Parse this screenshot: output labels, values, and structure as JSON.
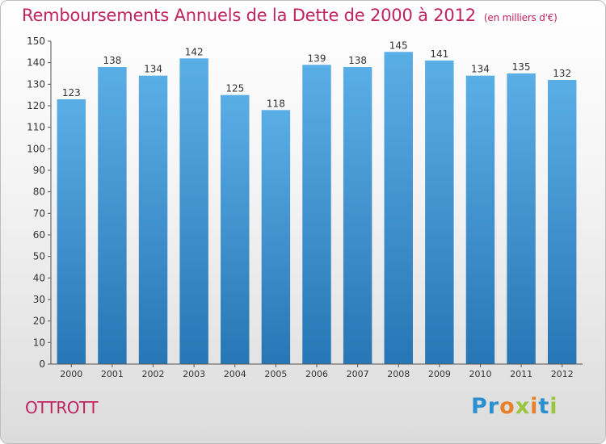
{
  "header": {
    "title": "Remboursements Annuels de la Dette de 2000 à 2012",
    "subtitle": "(en milliers d'€)"
  },
  "footer": {
    "commune": "OTTROTT",
    "logo": {
      "letters": [
        "P",
        "r",
        "o",
        "x",
        "i",
        "t",
        "i"
      ],
      "colors": [
        "#2b8fd0",
        "#2b8fd0",
        "#e9812b",
        "#9bc53d",
        "#e9812b",
        "#2b8fd0",
        "#9bc53d"
      ]
    }
  },
  "chart_data": {
    "type": "bar",
    "title": "Remboursements Annuels de la Dette de 2000 à 2012",
    "xlabel": "",
    "ylabel": "",
    "categories": [
      "2000",
      "2001",
      "2002",
      "2003",
      "2004",
      "2005",
      "2006",
      "2007",
      "2008",
      "2009",
      "2010",
      "2011",
      "2012"
    ],
    "values": [
      123,
      138,
      134,
      142,
      125,
      118,
      139,
      138,
      145,
      141,
      134,
      135,
      132
    ],
    "ylim": [
      0,
      150
    ],
    "yticks": [
      0,
      10,
      20,
      30,
      40,
      50,
      60,
      70,
      80,
      90,
      100,
      110,
      120,
      130,
      140,
      150
    ],
    "grid": false,
    "data_labels": true,
    "colors": {
      "bar_top": "#5aaee6",
      "bar_bottom": "#2776b5",
      "axis": "#555555",
      "text": "#333333"
    }
  }
}
